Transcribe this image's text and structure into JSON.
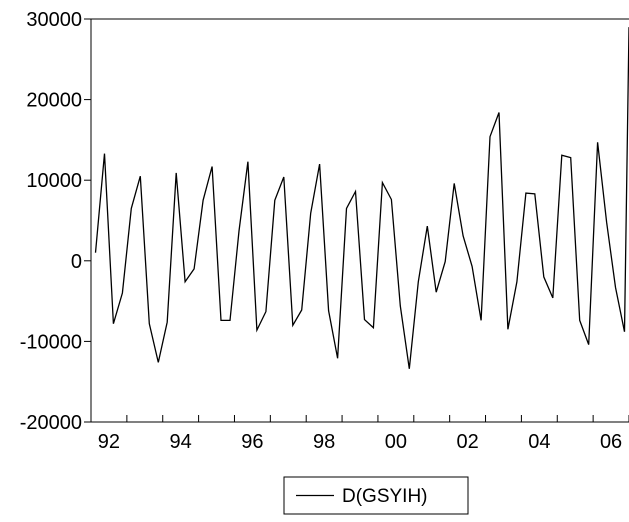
{
  "chart_data": {
    "type": "line",
    "title": "",
    "xlabel": "",
    "ylabel": "",
    "ylim": [
      -20000,
      30000
    ],
    "xlim": [
      1992.0,
      2007.0
    ],
    "y_ticks": [
      "30000",
      "20000",
      "10000",
      "0",
      "-10000",
      "-20000"
    ],
    "y_tick_values": [
      30000,
      20000,
      10000,
      0,
      -10000,
      -20000
    ],
    "x_ticks": [
      "92",
      "94",
      "96",
      "98",
      "00",
      "02",
      "04",
      "06"
    ],
    "x_tick_values": [
      1992,
      1994,
      1996,
      1998,
      2000,
      2002,
      2004,
      2006
    ],
    "legend": {
      "placement": "bottom-center",
      "label": "D(GSYIH)",
      "color": "#000000"
    },
    "grid": false,
    "series": [
      {
        "name": "D(GSYIH)",
        "x": [
          1992.125,
          1992.375,
          1992.625,
          1992.875,
          1993.125,
          1993.375,
          1993.625,
          1993.875,
          1994.125,
          1994.375,
          1994.625,
          1994.875,
          1995.125,
          1995.375,
          1995.625,
          1995.875,
          1996.125,
          1996.375,
          1996.625,
          1996.875,
          1997.125,
          1997.375,
          1997.625,
          1997.875,
          1998.125,
          1998.375,
          1998.625,
          1998.875,
          1999.125,
          1999.375,
          1999.625,
          1999.875,
          2000.125,
          2000.375,
          2000.625,
          2000.875,
          2001.125,
          2001.375,
          2001.625,
          2001.875,
          2002.125,
          2002.375,
          2002.625,
          2002.875,
          2003.125,
          2003.375,
          2003.625,
          2003.875,
          2004.125,
          2004.375,
          2004.625,
          2004.875,
          2005.125,
          2005.375,
          2005.625,
          2005.875,
          2006.125,
          2006.375,
          2006.625,
          2006.875,
          2007.0
        ],
        "values": [
          1000,
          13300,
          -7800,
          -4000,
          6500,
          10500,
          -7800,
          -12600,
          -7600,
          10900,
          -2600,
          -1000,
          7500,
          11700,
          -7400,
          -7400,
          3700,
          12300,
          -8600,
          -6300,
          7500,
          10400,
          -8000,
          -6100,
          5900,
          12000,
          -6200,
          -12100,
          6500,
          8600,
          -7300,
          -8300,
          9700,
          7600,
          -5600,
          -13400,
          -2600,
          4300,
          -3900,
          -100,
          9600,
          3100,
          -700,
          -7400,
          15400,
          18400,
          -8500,
          -2600,
          8400,
          8300,
          -2000,
          -4600,
          13100,
          12800,
          -7400,
          -10400,
          14700,
          4800,
          -3300,
          -8800,
          29000
        ]
      }
    ]
  }
}
